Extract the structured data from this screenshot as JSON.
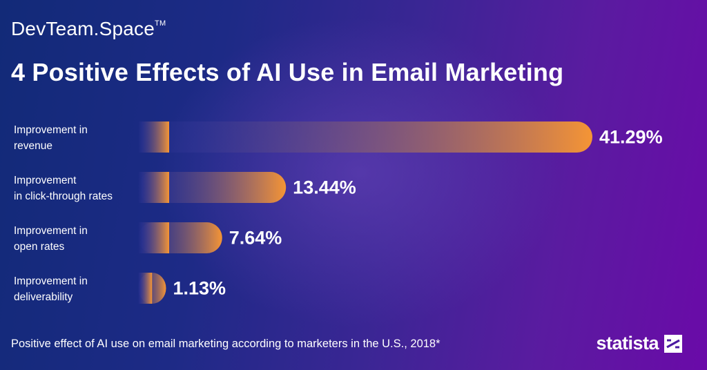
{
  "brand": {
    "name": "DevTeam.Space",
    "trademark": "TM"
  },
  "headline": "4 Positive Effects of AI Use in Email Marketing",
  "footnote": "Positive effect of AI use on email marketing according to marketers in the U.S., 2018*",
  "source_logo": {
    "text": "statista",
    "icon": "statista-logo-icon"
  },
  "colors": {
    "bar_start": "#3a3a9a",
    "bar_end": "#f59535",
    "text": "#ffffff"
  },
  "chart_data": {
    "type": "bar",
    "orientation": "horizontal",
    "title": "4 Positive Effects of AI Use in Email Marketing",
    "categories": [
      [
        "Improvement in",
        "revenue"
      ],
      [
        "Improvement",
        "in click-through rates"
      ],
      [
        "Improvement in",
        "open rates"
      ],
      [
        "Improvement in",
        "deliverability"
      ]
    ],
    "values": [
      41.29,
      13.44,
      7.64,
      1.13
    ],
    "value_labels": [
      "41.29%",
      "13.44%",
      "7.64%",
      "1.13%"
    ],
    "unit": "%",
    "grid": false,
    "legend": "none"
  }
}
